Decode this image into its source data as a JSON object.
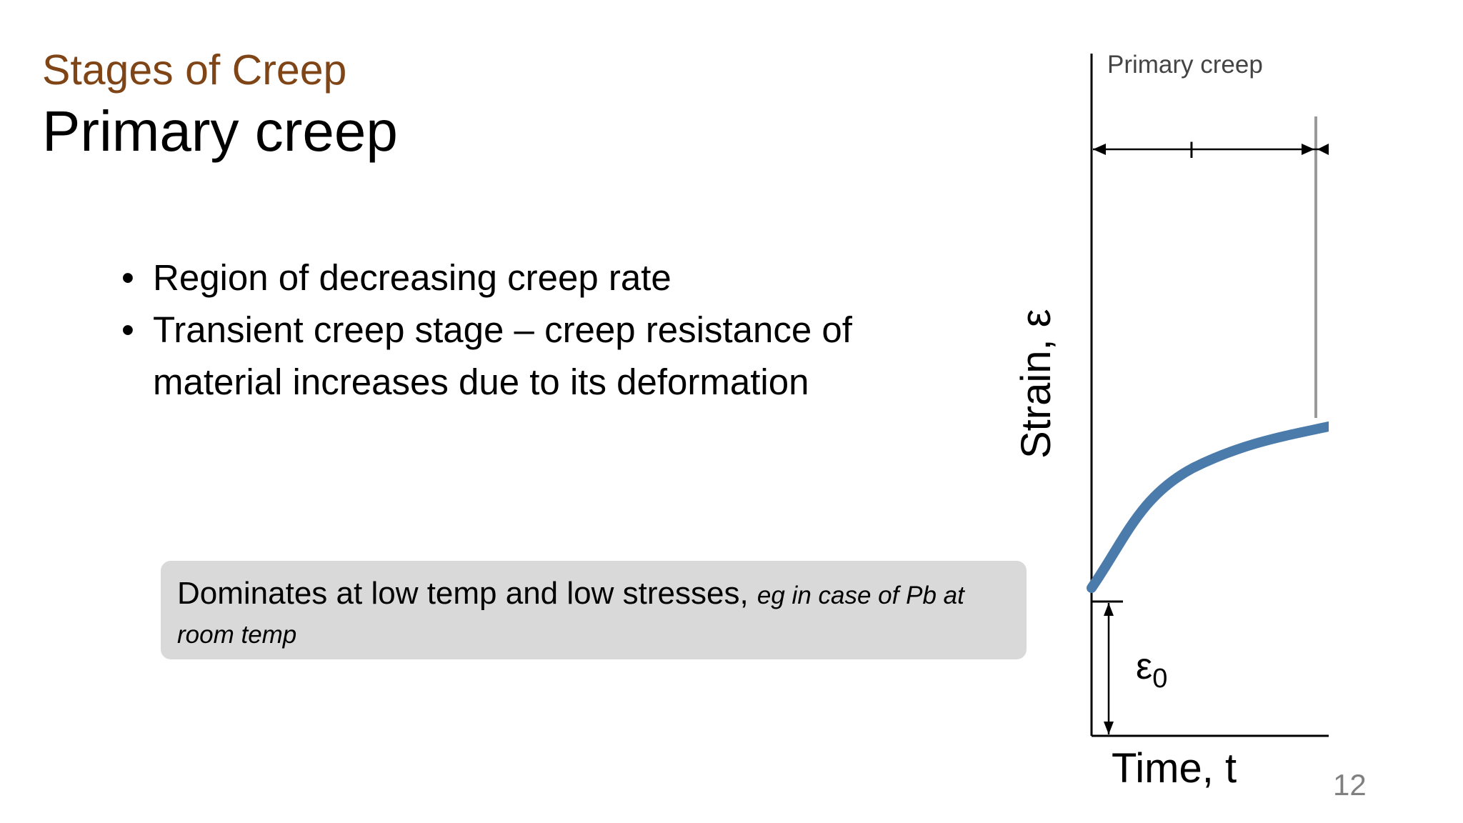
{
  "slide": {
    "section_title": "Stages of Creep",
    "title": "Primary creep",
    "bullets": [
      "Region of decreasing creep rate",
      "Transient creep stage – creep resistance of material increases due to its deformation"
    ],
    "callout": {
      "main_text": "Dominates at low temp and low stresses,",
      "example_text": "eg in case of Pb at room temp"
    },
    "page_number": "12",
    "colors": {
      "section_title": "#7f4517",
      "callout_background": "#d9d9d9",
      "curve": "#4a7bab",
      "page_number": "#808080"
    }
  },
  "figure": {
    "stage_label": "Primary creep",
    "stage_marker": "I",
    "y_axis_label": "Strain, ε",
    "x_axis_label": "Time, t",
    "initial_strain_label": "ε",
    "initial_strain_subscript": "0"
  }
}
